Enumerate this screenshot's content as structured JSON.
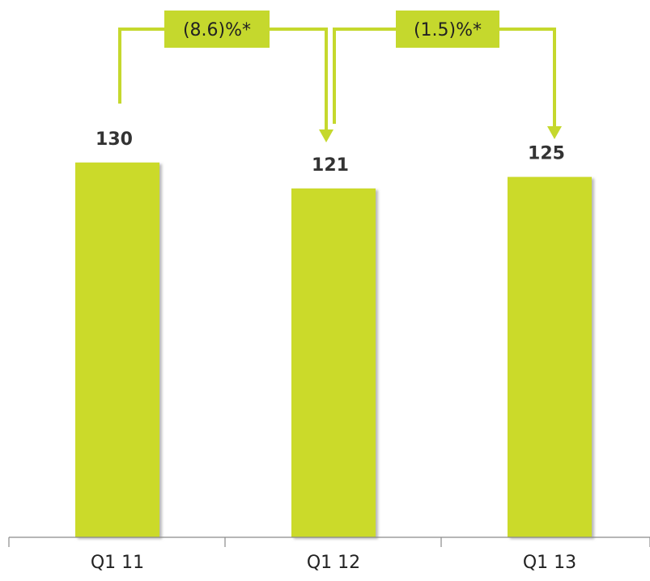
{
  "chart_data": {
    "type": "bar",
    "categories": [
      "Q1 11",
      "Q1 12",
      "Q1 13"
    ],
    "values": [
      130,
      121,
      125
    ],
    "value_labels": [
      "130",
      "121",
      "125"
    ],
    "ylim": [
      0,
      140
    ],
    "grid": false,
    "legend": "none",
    "annotations": [
      {
        "label": "(8.6)%*",
        "from": "Q1 11",
        "to": "Q1 12"
      },
      {
        "label": "(1.5)%*",
        "from": "Q1 12",
        "to": "Q1 13"
      }
    ],
    "colors": {
      "bar": "#cbda2b",
      "bar_shadow": "#b9b9b9",
      "arrow": "#c5d82d",
      "axis": "#8a8a8a"
    }
  }
}
